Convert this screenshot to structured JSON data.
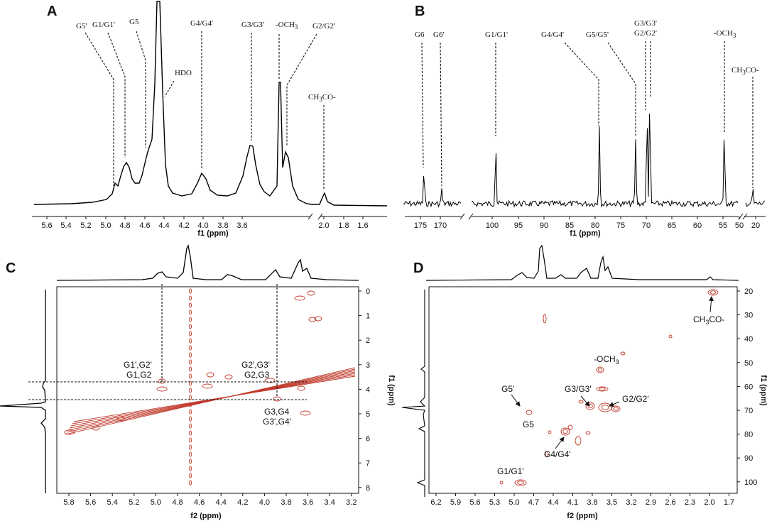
{
  "panels": {
    "A": {
      "letter": "A",
      "xlabel": "f1 (ppm)",
      "ticks": [
        "5.6",
        "5.4",
        "5.2",
        "5.0",
        "4.8",
        "4.6",
        "4.4",
        "4.2",
        "4.0",
        "3.8",
        "3.6",
        "2.0",
        "1.8",
        "1.6"
      ],
      "labels": [
        "G5'",
        "G1/G1'",
        "G5",
        "HDO",
        "G4/G4'",
        "G3/G3'",
        "-OCH3",
        "G2/G2'",
        "CH3CO-"
      ]
    },
    "B": {
      "letter": "B",
      "xlabel": "f1 (ppm)",
      "ticks": [
        "175",
        "170",
        "100",
        "95",
        "90",
        "85",
        "80",
        "75",
        "70",
        "65",
        "60",
        "55",
        "50",
        "20"
      ],
      "labels": [
        "G6",
        "G6'",
        "G1/G1'",
        "G4/G4'",
        "G5/G5'",
        "G3/G3'",
        "G2/G2'",
        "-OCH3",
        "CH3CO-"
      ]
    },
    "C": {
      "letter": "C",
      "xlabel": "f2 (ppm)",
      "ylabel": "f1 (ppm)",
      "xticks": [
        "5.8",
        "5.6",
        "5.4",
        "5.2",
        "5.0",
        "4.8",
        "4.6",
        "4.4",
        "4.2",
        "4.0",
        "3.8",
        "3.6",
        "3.4",
        "3.2"
      ],
      "yticks": [
        "0",
        "1",
        "2",
        "3",
        "4",
        "5",
        "6",
        "7",
        "8"
      ],
      "labels": [
        "G1',G2'",
        "G1,G2",
        "G2',G3'",
        "G2,G3",
        "G3,G4",
        "G3',G4'"
      ]
    },
    "D": {
      "letter": "D",
      "xlabel": "f2 (ppm)",
      "ylabel": "f1 (ppm)",
      "xticks": [
        "6.2",
        "5.9",
        "5.6",
        "5.3",
        "5.0",
        "4.7",
        "4.4",
        "4.1",
        "3.8",
        "3.5",
        "3.2",
        "2.9",
        "2.6",
        "2.3",
        "2.0",
        "1.7"
      ],
      "yticks": [
        "20",
        "30",
        "40",
        "50",
        "60",
        "70",
        "80",
        "90",
        "100"
      ],
      "labels": [
        "CH3CO-",
        "-OCH3",
        "G5'",
        "G3/G3'",
        "G2/G2'",
        "G5",
        "G4/G4'",
        "G1/G1'"
      ]
    }
  },
  "chart_data": [
    {
      "type": "line",
      "title": "A",
      "xlabel": "f1 (ppm)",
      "xlim": [
        5.75,
        1.45
      ],
      "axis_break": [
        3.55,
        2.1
      ],
      "peaks": [
        {
          "label": "G5'",
          "x": 5.06
        },
        {
          "label": "G1/G1'",
          "x": 5.0
        },
        {
          "label": "G5",
          "x": 4.81
        },
        {
          "label": "HDO",
          "x": 4.7
        },
        {
          "label": "G4/G4'",
          "x": 4.35
        },
        {
          "label": "G3/G3'",
          "x": 3.93
        },
        {
          "label": "-OCH3",
          "x": 3.71
        },
        {
          "label": "G2/G2'",
          "x": 3.66
        },
        {
          "label": "CH3CO-",
          "x": 1.97
        }
      ]
    },
    {
      "type": "line",
      "title": "B",
      "xlabel": "f1 (ppm)",
      "xlim": [
        178,
        18
      ],
      "axis_breaks": [
        [
          169,
          103
        ],
        [
          48,
          22
        ]
      ],
      "peaks": [
        {
          "label": "G6",
          "x": 175.2
        },
        {
          "label": "G6'",
          "x": 171.2
        },
        {
          "label": "G1/G1'",
          "x": 99.4
        },
        {
          "label": "G4/G4'",
          "x": 78.3
        },
        {
          "label": "G5/G5'",
          "x": 71.0
        },
        {
          "label": "G3/G3'",
          "x": 68.9
        },
        {
          "label": "G2/G2'",
          "x": 68.3
        },
        {
          "label": "-OCH3",
          "x": 53.1
        },
        {
          "label": "CH3CO-",
          "x": 20.0
        }
      ]
    },
    {
      "type": "scatter",
      "title": "C",
      "xlabel": "f2 (ppm)",
      "ylabel": "f1 (ppm)",
      "xlim": [
        5.9,
        3.2
      ],
      "ylim": [
        0,
        8.3
      ],
      "cross_peaks": [
        {
          "label": "G1',G2'",
          "x": 4.98,
          "y": 3.75
        },
        {
          "label": "G1,G2",
          "x": 5.02,
          "y": 3.9
        },
        {
          "label": "G2',G3'",
          "x": 3.93,
          "y": 3.75
        },
        {
          "label": "G2,G3",
          "x": 3.9,
          "y": 4.0
        },
        {
          "label": "G3,G4",
          "x": 3.92,
          "y": 4.45
        },
        {
          "label": "G3',G4'",
          "x": 3.93,
          "y": 5.1
        }
      ]
    },
    {
      "type": "scatter",
      "title": "D",
      "xlabel": "f2 (ppm)",
      "ylabel": "f1 (ppm)",
      "xlim": [
        6.35,
        1.7
      ],
      "ylim": [
        18,
        104
      ],
      "cross_peaks": [
        {
          "label": "CH3CO-",
          "x": 1.98,
          "y": 20.8
        },
        {
          "label": "-OCH3",
          "x": 3.71,
          "y": 53.1
        },
        {
          "label": "G5'",
          "x": 5.06,
          "y": 71.0
        },
        {
          "label": "G3/G3'",
          "x": 3.93,
          "y": 68.9
        },
        {
          "label": "G2/G2'",
          "x": 3.66,
          "y": 68.3
        },
        {
          "label": "G5",
          "x": 4.81,
          "y": 71.0
        },
        {
          "label": "G4/G4'",
          "x": 4.35,
          "y": 78.3
        },
        {
          "label": "G1/G1'",
          "x": 5.0,
          "y": 99.4
        }
      ]
    }
  ]
}
